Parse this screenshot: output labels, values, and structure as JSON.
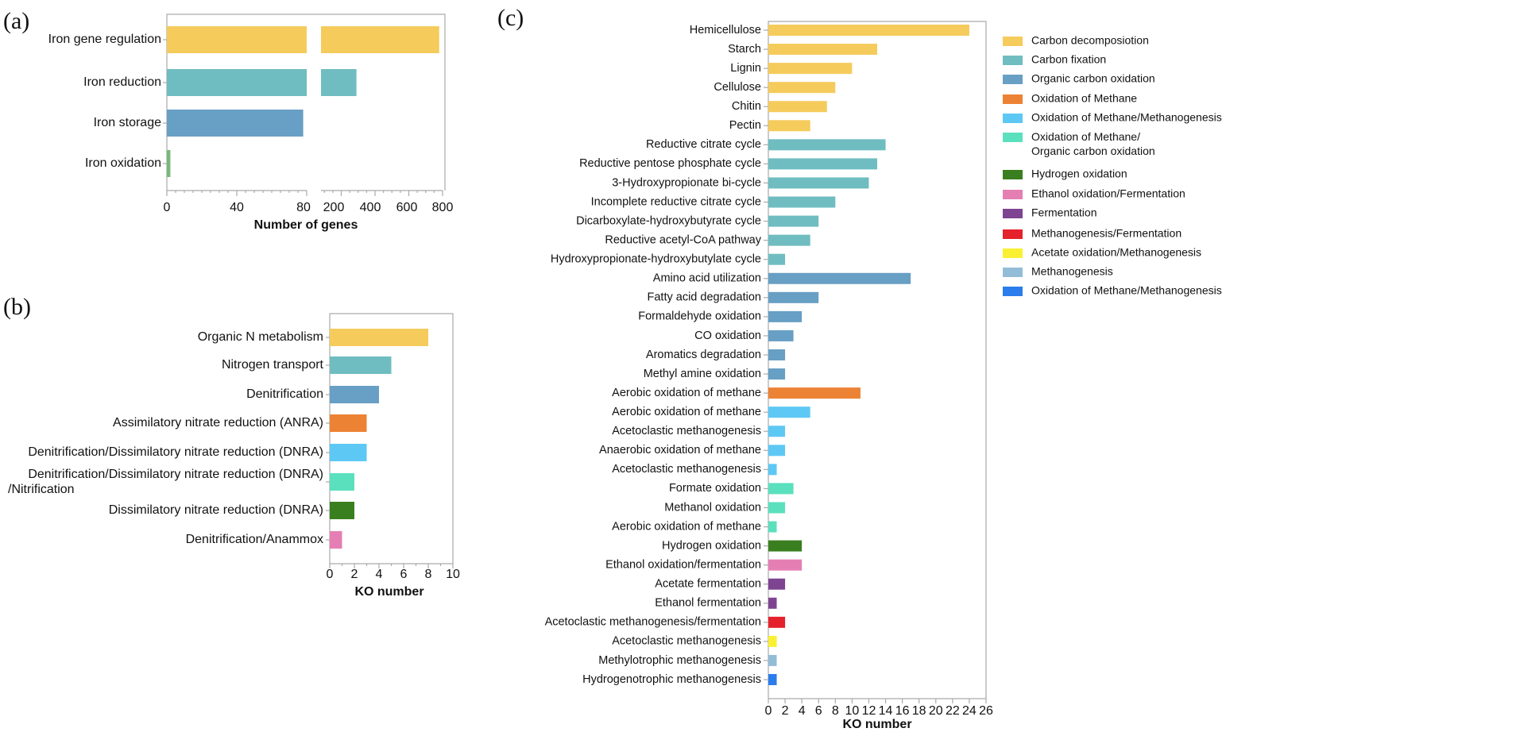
{
  "chart_data": [
    {
      "panel": "(a)",
      "type": "bar",
      "orientation": "horizontal",
      "categories": [
        "Iron gene regulation",
        "Iron reduction",
        "Iron storage",
        "Iron oxidation"
      ],
      "values": [
        780,
        290,
        78,
        2
      ],
      "colors": [
        "#F5CB5C",
        "#6FBDC0",
        "#689FC4",
        "#76B877"
      ],
      "xlabel": "Number of genes",
      "ylabel": "",
      "axis_break": [
        80,
        80
      ],
      "xlim": [
        0,
        800
      ],
      "xticks": [
        "0",
        "40",
        "80",
        "200",
        "400",
        "600",
        "800"
      ],
      "grid": false
    },
    {
      "panel": "(b)",
      "type": "bar",
      "orientation": "horizontal",
      "categories": [
        "Organic N metabolism",
        "Nitrogen transport",
        "Denitrification",
        "Assimilatory nitrate reduction (ANRA)",
        "Denitrification/Dissimilatory nitrate reduction (DNRA)",
        "Denitrification/Dissimilatory nitrate reduction (DNRA)\n/Nitrification",
        "Dissimilatory nitrate reduction (DNRA)",
        "Denitrification/Anammox"
      ],
      "values": [
        8,
        5,
        4,
        3,
        3,
        2,
        2,
        1
      ],
      "colors": [
        "#F5CB5C",
        "#6FBDC0",
        "#689FC4",
        "#EC8234",
        "#5EC8F5",
        "#5BE0BE",
        "#3A7F1F",
        "#E57FB3"
      ],
      "xlabel": "KO number",
      "xlim": [
        0,
        10
      ],
      "xticks": [
        "0",
        "2",
        "4",
        "6",
        "8",
        "10"
      ],
      "grid": false
    },
    {
      "panel": "(c)",
      "type": "bar",
      "orientation": "horizontal",
      "categories": [
        "Hemicellulose",
        "Starch",
        "Lignin",
        "Cellulose",
        "Chitin",
        "Pectin",
        "Reductive citrate cycle",
        "Reductive pentose phosphate cycle",
        "3-Hydroxypropionate bi-cycle",
        "Incomplete reductive citrate cycle",
        "Dicarboxylate-hydroxybutyrate cycle",
        "Reductive acetyl-CoA pathway",
        "Hydroxypropionate-hydroxybutylate cycle",
        "Amino acid utilization",
        "Fatty acid degradation",
        "Formaldehyde oxidation",
        "CO oxidation",
        "Aromatics degradation",
        "Methyl amine oxidation",
        "Aerobic oxidation of methane",
        "Aerobic oxidation of methane",
        "Acetoclastic methanogenesis",
        "Anaerobic oxidation of methane",
        "Acetoclastic methanogenesis",
        "Formate oxidation",
        "Methanol oxidation",
        "Aerobic oxidation of methane",
        "Hydrogen oxidation",
        "Ethanol oxidation/fermentation",
        "Acetate fermentation",
        "Ethanol fermentation",
        "Acetoclastic methanogenesis/fermentation",
        "Acetoclastic methanogenesis",
        "Methylotrophic methanogenesis",
        "Hydrogenotrophic methanogenesis"
      ],
      "values": [
        24,
        13,
        10,
        8,
        7,
        5,
        14,
        13,
        12,
        8,
        6,
        5,
        2,
        17,
        6,
        4,
        3,
        2,
        2,
        11,
        5,
        2,
        2,
        1,
        3,
        2,
        1,
        4,
        4,
        2,
        1,
        2,
        1,
        1,
        1
      ],
      "groups": [
        0,
        0,
        0,
        0,
        0,
        0,
        1,
        1,
        1,
        1,
        1,
        1,
        1,
        2,
        2,
        2,
        2,
        2,
        2,
        3,
        4,
        4,
        4,
        4,
        5,
        5,
        5,
        6,
        7,
        8,
        8,
        9,
        10,
        11,
        12
      ],
      "xlabel": "KO number",
      "xlim": [
        0,
        26
      ],
      "xticks": [
        "0",
        "2",
        "4",
        "6",
        "8",
        "10",
        "12",
        "14",
        "16",
        "18",
        "20",
        "22",
        "24",
        "26"
      ],
      "grid": false,
      "legend_position": "right",
      "legend": [
        {
          "label": "Carbon decomposiotion",
          "color": "#F5CB5C"
        },
        {
          "label": "Carbon fixation",
          "color": "#6FBDC0"
        },
        {
          "label": "Organic carbon oxidation",
          "color": "#689FC4"
        },
        {
          "label": "Oxidation of Methane",
          "color": "#EC8234"
        },
        {
          "label": "Oxidation of Methane/Methanogenesis",
          "color": "#5EC8F5"
        },
        {
          "label": "Oxidation of Methane/\nOrganic carbon oxidation",
          "color": "#5BE0BE"
        },
        {
          "label": "Hydrogen oxidation",
          "color": "#3A7F1F"
        },
        {
          "label": "Ethanol oxidation/Fermentation",
          "color": "#E57FB3"
        },
        {
          "label": "Fermentation",
          "color": "#7E4491"
        },
        {
          "label": "Methanogenesis/Fermentation",
          "color": "#E5212B"
        },
        {
          "label": "Acetate oxidation/Methanogenesis",
          "color": "#FAF032"
        },
        {
          "label": "Methanogenesis",
          "color": "#93BDD6"
        },
        {
          "label": "Oxidation of Methane/Methanogenesis",
          "color": "#2B7DEB"
        }
      ]
    }
  ]
}
